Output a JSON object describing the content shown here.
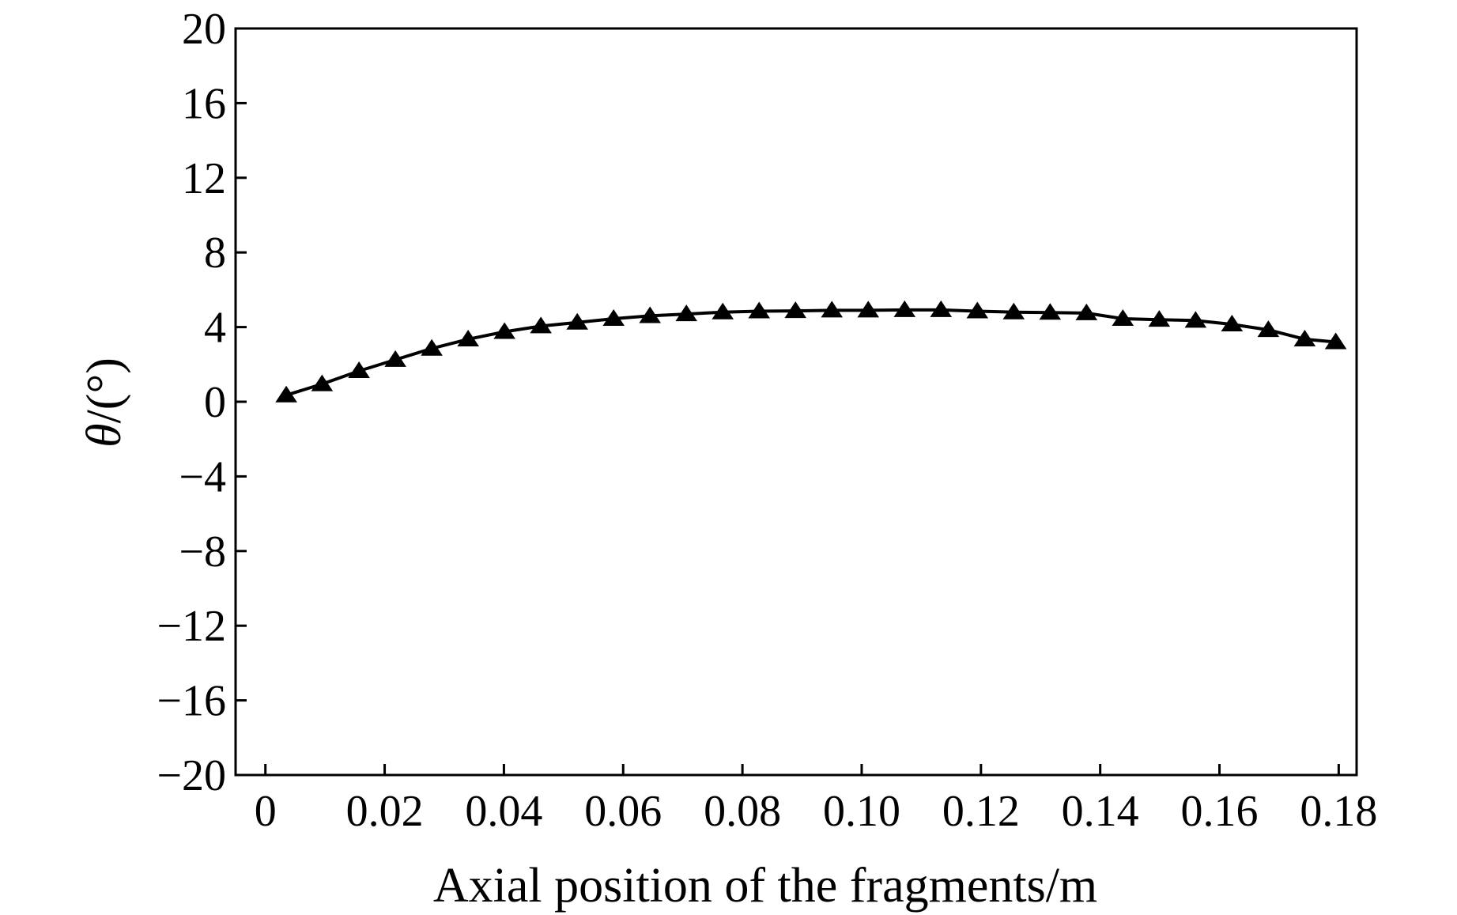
{
  "chart_data": {
    "type": "line",
    "title": "",
    "xlabel": "Axial position of the fragments/m",
    "ylabel_symbol": "θ",
    "ylabel_unit": "/(°)",
    "xlim": [
      -0.005,
      0.183
    ],
    "ylim": [
      -20,
      20
    ],
    "x_ticks": [
      0,
      0.02,
      0.04,
      0.06,
      0.08,
      0.1,
      0.12,
      0.14,
      0.16,
      0.18
    ],
    "x_tick_labels": [
      "0",
      "0.02",
      "0.04",
      "0.06",
      "0.08",
      "0.10",
      "0.12",
      "0.14",
      "0.16",
      "0.18"
    ],
    "y_ticks": [
      -20,
      -16,
      -12,
      -8,
      -4,
      0,
      4,
      8,
      12,
      16,
      20
    ],
    "y_tick_labels": [
      "−20",
      "−16",
      "−12",
      "−8",
      "−4",
      "0",
      "4",
      "8",
      "12",
      "16",
      "20"
    ],
    "grid": false,
    "marker": "triangle",
    "colors": {
      "line": "#000000",
      "axis": "#000000"
    },
    "series": [
      {
        "x": [
          0.0035,
          0.0095,
          0.0157,
          0.0218,
          0.0279,
          0.034,
          0.0401,
          0.0462,
          0.0523,
          0.0584,
          0.0645,
          0.0706,
          0.0767,
          0.0828,
          0.0889,
          0.095,
          0.1011,
          0.1072,
          0.1133,
          0.1194,
          0.1255,
          0.1316,
          0.1377,
          0.1438,
          0.1499,
          0.156,
          0.1621,
          0.1682,
          0.1743,
          0.1795
        ],
        "y": [
          0.35,
          0.95,
          1.65,
          2.25,
          2.85,
          3.35,
          3.75,
          4.05,
          4.25,
          4.45,
          4.6,
          4.7,
          4.8,
          4.85,
          4.87,
          4.9,
          4.9,
          4.92,
          4.92,
          4.85,
          4.8,
          4.78,
          4.75,
          4.45,
          4.4,
          4.35,
          4.15,
          3.85,
          3.35,
          3.2
        ]
      }
    ]
  }
}
